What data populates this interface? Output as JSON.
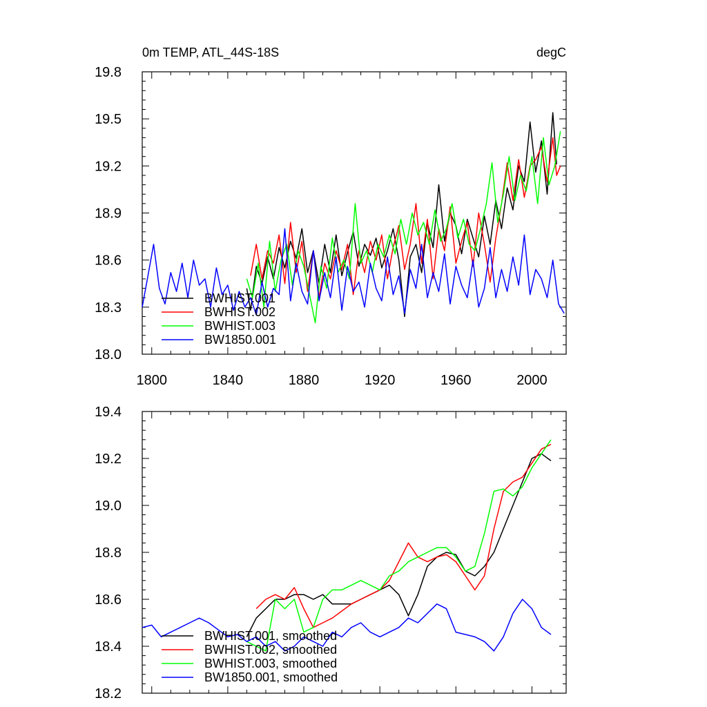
{
  "chart_data": [
    {
      "type": "line",
      "title": "0m TEMP, ATL_44S-18S",
      "units": "degC",
      "xlim": [
        1795,
        2018
      ],
      "ylim": [
        18.0,
        19.8
      ],
      "xticks": [
        1800,
        1840,
        1880,
        1920,
        1960,
        2000
      ],
      "xtick_labels": [
        "1800",
        "1840",
        "1880",
        "1920",
        "1960",
        "2000"
      ],
      "yticks": [
        18.0,
        18.3,
        18.6,
        18.9,
        19.2,
        19.5,
        19.8
      ],
      "ytick_labels": [
        "18.0",
        "18.3",
        "18.6",
        "18.9",
        "19.2",
        "19.5",
        "19.8"
      ],
      "grid": false,
      "legend_position": "bottom-left",
      "series": [
        {
          "name": "BWHIST.001",
          "color": "#000000",
          "x": [
            1850,
            1852,
            1855,
            1858,
            1861,
            1864,
            1867,
            1870,
            1873,
            1876,
            1879,
            1882,
            1885,
            1888,
            1891,
            1894,
            1897,
            1900,
            1903,
            1906,
            1909,
            1912,
            1915,
            1918,
            1921,
            1924,
            1927,
            1930,
            1933,
            1936,
            1939,
            1942,
            1945,
            1948,
            1951,
            1954,
            1957,
            1960,
            1963,
            1966,
            1969,
            1972,
            1975,
            1978,
            1981,
            1984,
            1987,
            1990,
            1993,
            1996,
            1999,
            2002,
            2005,
            2008,
            2011,
            2013
          ],
          "y": [
            18.42,
            18.28,
            18.56,
            18.45,
            18.62,
            18.48,
            18.68,
            18.55,
            18.72,
            18.61,
            18.8,
            18.52,
            18.66,
            18.45,
            18.7,
            18.52,
            18.76,
            18.5,
            18.65,
            18.78,
            18.56,
            18.7,
            18.63,
            18.74,
            18.55,
            18.66,
            18.8,
            18.6,
            18.24,
            18.62,
            18.7,
            18.52,
            18.84,
            18.68,
            19.08,
            18.72,
            18.9,
            18.82,
            18.64,
            18.86,
            18.74,
            18.62,
            18.88,
            18.7,
            18.98,
            18.8,
            19.06,
            18.92,
            19.2,
            19.1,
            19.48,
            19.16,
            19.36,
            19.02,
            19.54,
            19.21
          ]
        },
        {
          "name": "BWHIST.002",
          "color": "#ff0000",
          "x": [
            1852,
            1855,
            1858,
            1861,
            1864,
            1867,
            1870,
            1873,
            1876,
            1879,
            1882,
            1885,
            1888,
            1891,
            1894,
            1897,
            1900,
            1903,
            1906,
            1909,
            1912,
            1915,
            1918,
            1921,
            1924,
            1927,
            1930,
            1933,
            1936,
            1939,
            1942,
            1945,
            1948,
            1951,
            1954,
            1957,
            1960,
            1963,
            1966,
            1969,
            1972,
            1975,
            1978,
            1981,
            1984,
            1987,
            1990,
            1993,
            1996,
            1999,
            2002,
            2005,
            2008,
            2011,
            2013,
            2015
          ],
          "y": [
            18.5,
            18.7,
            18.48,
            18.66,
            18.58,
            18.76,
            18.45,
            18.84,
            18.52,
            18.72,
            18.4,
            18.66,
            18.36,
            18.58,
            18.48,
            18.66,
            18.54,
            18.7,
            18.38,
            18.66,
            18.52,
            18.72,
            18.6,
            18.76,
            18.48,
            18.68,
            18.82,
            18.54,
            18.7,
            18.96,
            18.58,
            18.86,
            18.48,
            18.8,
            18.66,
            18.94,
            18.58,
            18.72,
            18.84,
            18.56,
            18.9,
            18.7,
            18.46,
            18.74,
            18.96,
            19.22,
            18.98,
            19.24,
            19.0,
            19.2,
            19.24,
            19.32,
            19.1,
            19.38,
            19.14,
            19.2
          ]
        },
        {
          "name": "BWHIST.003",
          "color": "#00ff00",
          "x": [
            1850,
            1853,
            1856,
            1859,
            1862,
            1865,
            1868,
            1871,
            1874,
            1877,
            1880,
            1883,
            1886,
            1889,
            1892,
            1895,
            1898,
            1901,
            1904,
            1907,
            1910,
            1913,
            1916,
            1919,
            1922,
            1925,
            1928,
            1931,
            1934,
            1937,
            1940,
            1943,
            1946,
            1949,
            1952,
            1955,
            1958,
            1961,
            1964,
            1967,
            1970,
            1973,
            1976,
            1979,
            1982,
            1985,
            1988,
            1991,
            1994,
            1997,
            2000,
            2003,
            2006,
            2009,
            2012,
            2015
          ],
          "y": [
            18.48,
            18.36,
            18.58,
            18.3,
            18.72,
            18.4,
            18.6,
            18.7,
            18.44,
            18.66,
            18.56,
            18.38,
            18.2,
            18.56,
            18.42,
            18.74,
            18.52,
            18.6,
            18.48,
            18.96,
            18.58,
            18.66,
            18.52,
            18.7,
            18.62,
            18.76,
            18.64,
            18.86,
            18.7,
            18.9,
            18.76,
            18.84,
            18.7,
            18.92,
            18.72,
            18.8,
            18.96,
            18.74,
            18.86,
            18.7,
            18.66,
            18.8,
            18.96,
            19.22,
            18.84,
            19.02,
            19.26,
            18.98,
            19.14,
            19.04,
            19.26,
            18.96,
            19.38,
            19.08,
            19.2,
            19.42
          ]
        },
        {
          "name": "BW1850.001",
          "color": "#0000ff",
          "x": [
            1795,
            1798,
            1801,
            1804,
            1807,
            1810,
            1813,
            1816,
            1819,
            1822,
            1825,
            1828,
            1831,
            1834,
            1837,
            1840,
            1843,
            1846,
            1849,
            1852,
            1855,
            1858,
            1861,
            1864,
            1867,
            1870,
            1873,
            1876,
            1879,
            1882,
            1885,
            1888,
            1891,
            1894,
            1897,
            1900,
            1903,
            1906,
            1909,
            1912,
            1915,
            1918,
            1921,
            1924,
            1927,
            1930,
            1933,
            1936,
            1939,
            1942,
            1945,
            1948,
            1951,
            1954,
            1957,
            1960,
            1963,
            1966,
            1969,
            1972,
            1975,
            1978,
            1981,
            1984,
            1987,
            1990,
            1993,
            1996,
            1999,
            2002,
            2005,
            2008,
            2011,
            2014,
            2017
          ],
          "y": [
            18.3,
            18.5,
            18.7,
            18.42,
            18.32,
            18.52,
            18.4,
            18.58,
            18.36,
            18.6,
            18.44,
            18.48,
            18.3,
            18.55,
            18.38,
            18.44,
            18.28,
            18.4,
            18.3,
            18.36,
            18.25,
            18.46,
            18.3,
            18.42,
            18.38,
            18.8,
            18.34,
            18.58,
            18.4,
            18.32,
            18.66,
            18.34,
            18.52,
            18.36,
            18.62,
            18.28,
            18.56,
            18.4,
            18.46,
            18.3,
            18.58,
            18.42,
            18.34,
            18.62,
            18.38,
            18.5,
            18.26,
            18.54,
            18.42,
            18.7,
            18.36,
            18.52,
            18.4,
            18.64,
            18.32,
            18.56,
            18.44,
            18.36,
            18.6,
            18.3,
            18.42,
            18.68,
            18.36,
            18.54,
            18.4,
            18.62,
            18.44,
            18.76,
            18.38,
            18.54,
            18.48,
            18.36,
            18.6,
            18.32,
            18.26
          ]
        }
      ]
    },
    {
      "type": "line",
      "xlim": [
        1795,
        2018
      ],
      "ylim": [
        18.2,
        19.4
      ],
      "xticks": [
        1800,
        1840,
        1880,
        1920,
        1960,
        2000
      ],
      "yticks": [
        18.2,
        18.4,
        18.6,
        18.8,
        19.0,
        19.2,
        19.4
      ],
      "ytick_labels": [
        "18.2",
        "18.4",
        "18.6",
        "18.8",
        "19.0",
        "19.2",
        "19.4"
      ],
      "grid": false,
      "legend_position": "bottom-left",
      "series": [
        {
          "name": "BWHIST.001, smoothed",
          "color": "#000000",
          "x": [
            1850,
            1855,
            1860,
            1865,
            1870,
            1875,
            1880,
            1885,
            1890,
            1895,
            1900,
            1905,
            1910,
            1915,
            1920,
            1925,
            1930,
            1935,
            1940,
            1945,
            1950,
            1955,
            1960,
            1965,
            1970,
            1975,
            1980,
            1985,
            1990,
            1995,
            2000,
            2005,
            2010
          ],
          "y": [
            18.44,
            18.52,
            18.56,
            18.6,
            18.6,
            18.62,
            18.62,
            18.6,
            18.62,
            18.58,
            18.58,
            18.58,
            18.6,
            18.62,
            18.64,
            18.66,
            18.62,
            18.53,
            18.62,
            18.74,
            18.78,
            18.8,
            18.79,
            18.72,
            18.7,
            18.74,
            18.8,
            18.9,
            19.0,
            19.1,
            19.2,
            19.22,
            19.19
          ]
        },
        {
          "name": "BWHIST.002, smoothed",
          "color": "#ff0000",
          "x": [
            1855,
            1860,
            1865,
            1870,
            1875,
            1880,
            1885,
            1890,
            1895,
            1900,
            1905,
            1910,
            1915,
            1920,
            1925,
            1930,
            1935,
            1940,
            1945,
            1950,
            1955,
            1960,
            1965,
            1970,
            1975,
            1980,
            1985,
            1990,
            1995,
            2000,
            2005,
            2010
          ],
          "y": [
            18.56,
            18.6,
            18.62,
            18.6,
            18.65,
            18.56,
            18.48,
            18.5,
            18.52,
            18.55,
            18.58,
            18.6,
            18.62,
            18.64,
            18.68,
            18.76,
            18.84,
            18.78,
            18.76,
            18.78,
            18.79,
            18.76,
            18.7,
            18.64,
            18.7,
            18.9,
            19.06,
            19.1,
            19.12,
            19.18,
            19.24,
            19.26
          ]
        },
        {
          "name": "BWHIST.003, smoothed",
          "color": "#00ff00",
          "x": [
            1850,
            1855,
            1860,
            1865,
            1870,
            1875,
            1880,
            1885,
            1890,
            1895,
            1900,
            1905,
            1910,
            1915,
            1920,
            1925,
            1930,
            1935,
            1940,
            1945,
            1950,
            1955,
            1960,
            1965,
            1970,
            1975,
            1980,
            1985,
            1990,
            1995,
            2000,
            2005,
            2010
          ],
          "y": [
            18.42,
            18.4,
            18.38,
            18.6,
            18.56,
            18.6,
            18.46,
            18.48,
            18.6,
            18.64,
            18.64,
            18.66,
            18.68,
            18.66,
            18.64,
            18.7,
            18.72,
            18.76,
            18.78,
            18.8,
            18.82,
            18.82,
            18.78,
            18.72,
            18.74,
            18.88,
            19.06,
            19.07,
            19.04,
            19.08,
            19.16,
            19.22,
            19.28
          ]
        },
        {
          "name": "BW1850.001, smoothed",
          "color": "#0000ff",
          "x": [
            1795,
            1800,
            1805,
            1810,
            1815,
            1820,
            1825,
            1830,
            1835,
            1840,
            1845,
            1850,
            1855,
            1860,
            1865,
            1870,
            1875,
            1880,
            1885,
            1890,
            1895,
            1900,
            1905,
            1910,
            1915,
            1920,
            1925,
            1930,
            1935,
            1940,
            1945,
            1950,
            1955,
            1960,
            1965,
            1970,
            1975,
            1980,
            1985,
            1990,
            1995,
            2000,
            2005,
            2010
          ],
          "y": [
            18.48,
            18.49,
            18.44,
            18.46,
            18.48,
            18.5,
            18.52,
            18.5,
            18.47,
            18.44,
            18.45,
            18.42,
            18.44,
            18.4,
            18.42,
            18.38,
            18.4,
            18.44,
            18.42,
            18.4,
            18.46,
            18.44,
            18.48,
            18.5,
            18.46,
            18.44,
            18.46,
            18.48,
            18.52,
            18.5,
            18.54,
            18.58,
            18.56,
            18.46,
            18.45,
            18.44,
            18.42,
            18.38,
            18.44,
            18.54,
            18.6,
            18.56,
            18.48,
            18.45
          ]
        }
      ]
    }
  ]
}
